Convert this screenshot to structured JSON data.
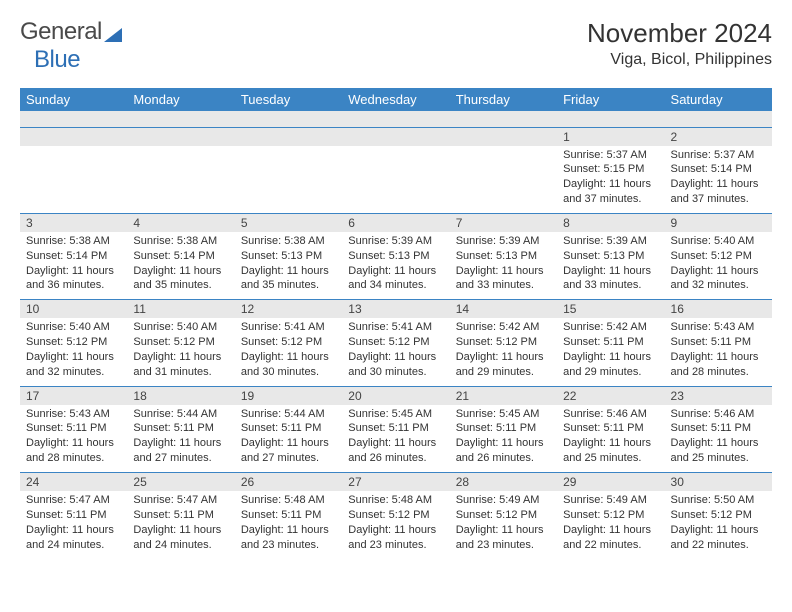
{
  "brand": {
    "word1": "General",
    "word2": "Blue"
  },
  "title": "November 2024",
  "location": "Viga, Bicol, Philippines",
  "colors": {
    "header_bg": "#3b84c4",
    "header_text": "#ffffff",
    "daynum_bg": "#e8e8e8",
    "border": "#3b84c4",
    "text": "#333333",
    "brand_gray": "#4a4a4a",
    "brand_blue": "#2d6fb5"
  },
  "typography": {
    "title_fontsize": 26,
    "location_fontsize": 16,
    "header_fontsize": 13,
    "daynum_fontsize": 12,
    "cell_fontsize": 11
  },
  "day_labels": [
    "Sunday",
    "Monday",
    "Tuesday",
    "Wednesday",
    "Thursday",
    "Friday",
    "Saturday"
  ],
  "weeks": [
    [
      null,
      null,
      null,
      null,
      null,
      {
        "n": "1",
        "sr": "Sunrise: 5:37 AM",
        "ss": "Sunset: 5:15 PM",
        "dl": "Daylight: 11 hours and 37 minutes."
      },
      {
        "n": "2",
        "sr": "Sunrise: 5:37 AM",
        "ss": "Sunset: 5:14 PM",
        "dl": "Daylight: 11 hours and 37 minutes."
      }
    ],
    [
      {
        "n": "3",
        "sr": "Sunrise: 5:38 AM",
        "ss": "Sunset: 5:14 PM",
        "dl": "Daylight: 11 hours and 36 minutes."
      },
      {
        "n": "4",
        "sr": "Sunrise: 5:38 AM",
        "ss": "Sunset: 5:14 PM",
        "dl": "Daylight: 11 hours and 35 minutes."
      },
      {
        "n": "5",
        "sr": "Sunrise: 5:38 AM",
        "ss": "Sunset: 5:13 PM",
        "dl": "Daylight: 11 hours and 35 minutes."
      },
      {
        "n": "6",
        "sr": "Sunrise: 5:39 AM",
        "ss": "Sunset: 5:13 PM",
        "dl": "Daylight: 11 hours and 34 minutes."
      },
      {
        "n": "7",
        "sr": "Sunrise: 5:39 AM",
        "ss": "Sunset: 5:13 PM",
        "dl": "Daylight: 11 hours and 33 minutes."
      },
      {
        "n": "8",
        "sr": "Sunrise: 5:39 AM",
        "ss": "Sunset: 5:13 PM",
        "dl": "Daylight: 11 hours and 33 minutes."
      },
      {
        "n": "9",
        "sr": "Sunrise: 5:40 AM",
        "ss": "Sunset: 5:12 PM",
        "dl": "Daylight: 11 hours and 32 minutes."
      }
    ],
    [
      {
        "n": "10",
        "sr": "Sunrise: 5:40 AM",
        "ss": "Sunset: 5:12 PM",
        "dl": "Daylight: 11 hours and 32 minutes."
      },
      {
        "n": "11",
        "sr": "Sunrise: 5:40 AM",
        "ss": "Sunset: 5:12 PM",
        "dl": "Daylight: 11 hours and 31 minutes."
      },
      {
        "n": "12",
        "sr": "Sunrise: 5:41 AM",
        "ss": "Sunset: 5:12 PM",
        "dl": "Daylight: 11 hours and 30 minutes."
      },
      {
        "n": "13",
        "sr": "Sunrise: 5:41 AM",
        "ss": "Sunset: 5:12 PM",
        "dl": "Daylight: 11 hours and 30 minutes."
      },
      {
        "n": "14",
        "sr": "Sunrise: 5:42 AM",
        "ss": "Sunset: 5:12 PM",
        "dl": "Daylight: 11 hours and 29 minutes."
      },
      {
        "n": "15",
        "sr": "Sunrise: 5:42 AM",
        "ss": "Sunset: 5:11 PM",
        "dl": "Daylight: 11 hours and 29 minutes."
      },
      {
        "n": "16",
        "sr": "Sunrise: 5:43 AM",
        "ss": "Sunset: 5:11 PM",
        "dl": "Daylight: 11 hours and 28 minutes."
      }
    ],
    [
      {
        "n": "17",
        "sr": "Sunrise: 5:43 AM",
        "ss": "Sunset: 5:11 PM",
        "dl": "Daylight: 11 hours and 28 minutes."
      },
      {
        "n": "18",
        "sr": "Sunrise: 5:44 AM",
        "ss": "Sunset: 5:11 PM",
        "dl": "Daylight: 11 hours and 27 minutes."
      },
      {
        "n": "19",
        "sr": "Sunrise: 5:44 AM",
        "ss": "Sunset: 5:11 PM",
        "dl": "Daylight: 11 hours and 27 minutes."
      },
      {
        "n": "20",
        "sr": "Sunrise: 5:45 AM",
        "ss": "Sunset: 5:11 PM",
        "dl": "Daylight: 11 hours and 26 minutes."
      },
      {
        "n": "21",
        "sr": "Sunrise: 5:45 AM",
        "ss": "Sunset: 5:11 PM",
        "dl": "Daylight: 11 hours and 26 minutes."
      },
      {
        "n": "22",
        "sr": "Sunrise: 5:46 AM",
        "ss": "Sunset: 5:11 PM",
        "dl": "Daylight: 11 hours and 25 minutes."
      },
      {
        "n": "23",
        "sr": "Sunrise: 5:46 AM",
        "ss": "Sunset: 5:11 PM",
        "dl": "Daylight: 11 hours and 25 minutes."
      }
    ],
    [
      {
        "n": "24",
        "sr": "Sunrise: 5:47 AM",
        "ss": "Sunset: 5:11 PM",
        "dl": "Daylight: 11 hours and 24 minutes."
      },
      {
        "n": "25",
        "sr": "Sunrise: 5:47 AM",
        "ss": "Sunset: 5:11 PM",
        "dl": "Daylight: 11 hours and 24 minutes."
      },
      {
        "n": "26",
        "sr": "Sunrise: 5:48 AM",
        "ss": "Sunset: 5:11 PM",
        "dl": "Daylight: 11 hours and 23 minutes."
      },
      {
        "n": "27",
        "sr": "Sunrise: 5:48 AM",
        "ss": "Sunset: 5:12 PM",
        "dl": "Daylight: 11 hours and 23 minutes."
      },
      {
        "n": "28",
        "sr": "Sunrise: 5:49 AM",
        "ss": "Sunset: 5:12 PM",
        "dl": "Daylight: 11 hours and 23 minutes."
      },
      {
        "n": "29",
        "sr": "Sunrise: 5:49 AM",
        "ss": "Sunset: 5:12 PM",
        "dl": "Daylight: 11 hours and 22 minutes."
      },
      {
        "n": "30",
        "sr": "Sunrise: 5:50 AM",
        "ss": "Sunset: 5:12 PM",
        "dl": "Daylight: 11 hours and 22 minutes."
      }
    ]
  ]
}
